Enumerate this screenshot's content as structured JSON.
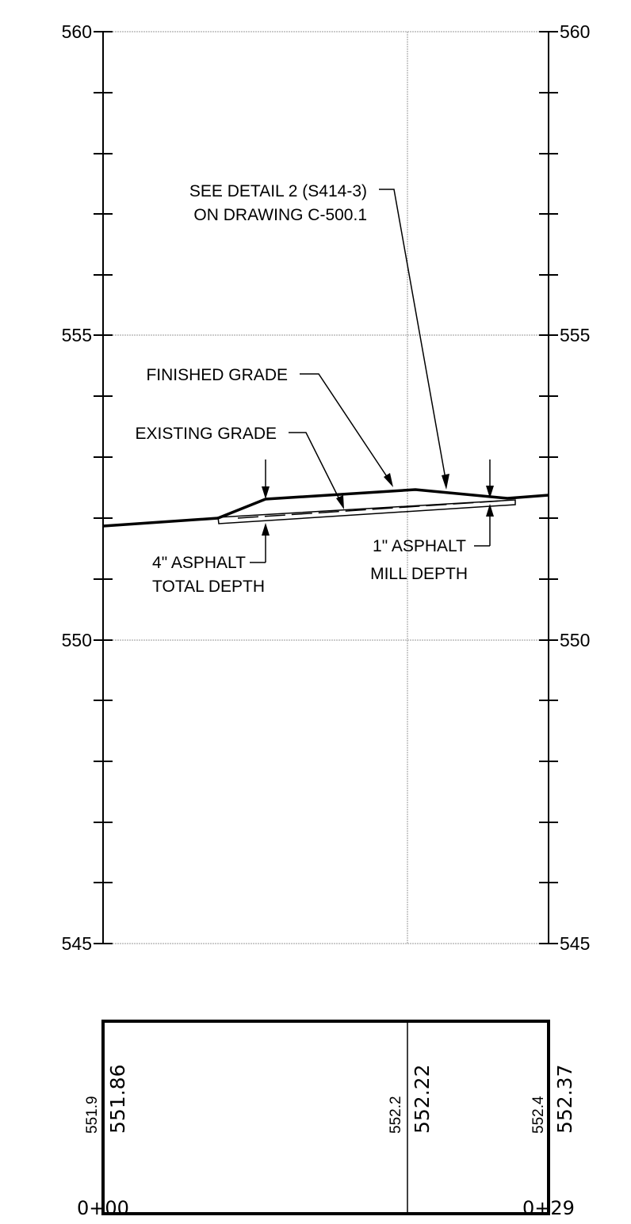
{
  "y_axis": {
    "left_labels": [
      "560",
      "555",
      "550",
      "545"
    ],
    "right_labels": [
      "560",
      "555",
      "550",
      "545"
    ]
  },
  "callouts": {
    "detail_line1": "SEE DETAIL 2 (S414-3)",
    "detail_line2": "ON DRAWING C-500.1",
    "finished_grade": "FINISHED GRADE",
    "existing_grade": "EXISTING GRADE",
    "asphalt_total_line1": "4\" ASPHALT",
    "asphalt_total_line2": "TOTAL DEPTH",
    "mill_line1": "1\" ASPHALT",
    "mill_line2": "MILL DEPTH"
  },
  "elevation_table": {
    "columns": [
      {
        "existing": "551.9",
        "proposed": "551.86"
      },
      {
        "existing": "552.2",
        "proposed": "552.22"
      },
      {
        "existing": "552.4",
        "proposed": "552.37"
      }
    ]
  },
  "stations": {
    "start": "0+00",
    "end": "0+29"
  }
}
